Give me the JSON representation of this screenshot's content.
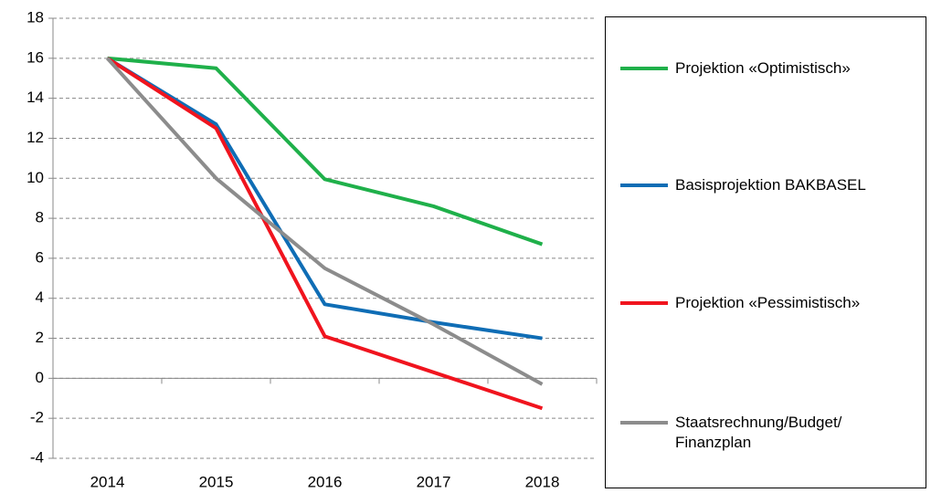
{
  "chart_data": {
    "type": "line",
    "categories": [
      "2014",
      "2015",
      "2016",
      "2017",
      "2018"
    ],
    "series": [
      {
        "name": "Projektion «Optimistisch»",
        "color": "#1fb04a",
        "values": [
          16,
          15.5,
          9.95,
          8.6,
          6.7
        ]
      },
      {
        "name": "Basisprojektion BAKBASEL",
        "color": "#0f6db5",
        "values": [
          16,
          12.7,
          3.7,
          2.8,
          2.0
        ]
      },
      {
        "name": "Projektion «Pessimistisch»",
        "color": "#f0141e",
        "values": [
          16,
          12.5,
          2.1,
          0.3,
          -1.5
        ]
      },
      {
        "name": "Staatsrechnung/Budget/ Finanzplan",
        "color": "#8c8c8c",
        "values": [
          16,
          10.0,
          5.5,
          2.7,
          -0.3
        ]
      }
    ],
    "ylim": [
      -4,
      18
    ],
    "yticks": [
      -4,
      -2,
      0,
      2,
      4,
      6,
      8,
      10,
      12,
      14,
      16,
      18
    ],
    "grid": true,
    "legend": "right"
  }
}
